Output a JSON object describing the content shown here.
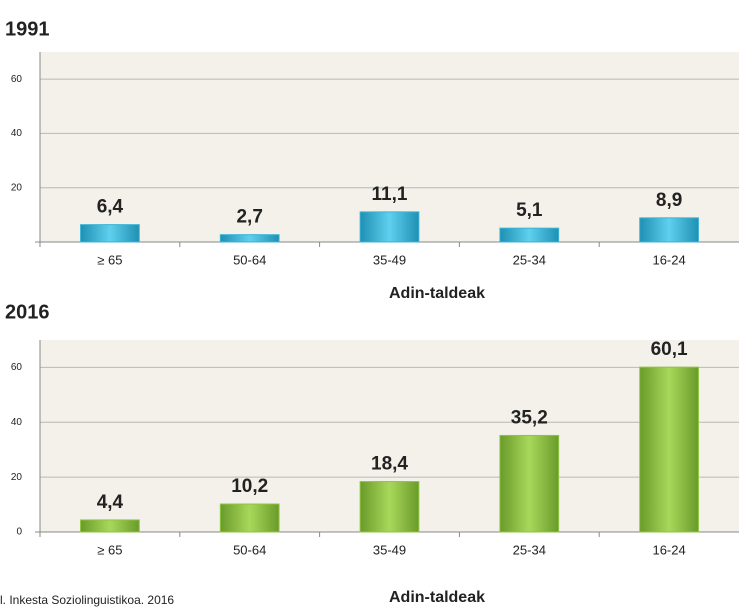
{
  "chart_data": [
    {
      "type": "bar",
      "title": "1991",
      "x_label": "Adin-taldeak",
      "categories": [
        "≥ 65",
        "50-64",
        "35-49",
        "25-34",
        "16-24"
      ],
      "values": [
        6.4,
        2.7,
        11.1,
        5.1,
        8.9
      ],
      "value_labels": [
        "6,4",
        "2,7",
        "11,1",
        "5,1",
        "8,9"
      ],
      "color": "#3ab4d6",
      "ylim": [
        0,
        70
      ],
      "yticks": [
        20,
        40,
        60
      ],
      "grid": true
    },
    {
      "type": "bar",
      "title": "2016",
      "x_label": "Adin-taldeak",
      "categories": [
        "≥ 65",
        "50-64",
        "35-49",
        "25-34",
        "16-24"
      ],
      "values": [
        4.4,
        10.2,
        18.4,
        35.2,
        60.1
      ],
      "value_labels": [
        "4,4",
        "10,2",
        "18,4",
        "35,2",
        "60,1"
      ],
      "color": "#8cc63f",
      "ylim": [
        0,
        70
      ],
      "yticks": [
        0,
        20,
        40,
        60
      ],
      "grid": true
    }
  ],
  "source": "l. Inkesta Soziolinguistikoa. 2016"
}
